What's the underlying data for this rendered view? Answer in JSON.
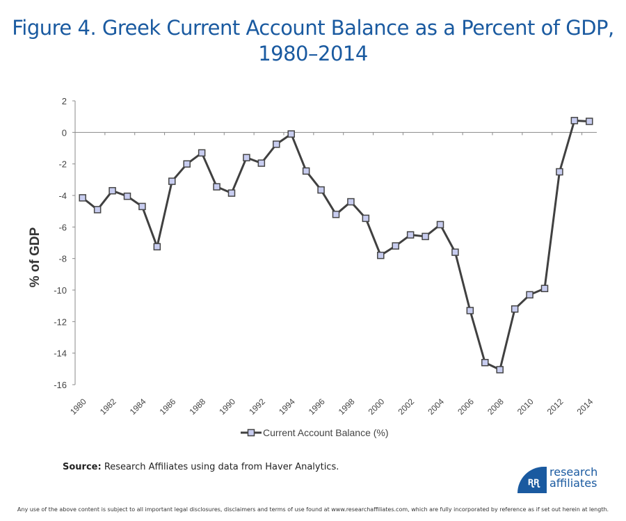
{
  "title_line1": "Figure 4. Greek Current Account Balance as a Percent of GDP,",
  "title_line2": "1980–2014",
  "source_label": "Source:",
  "source_text": " Research Affiliates using data from Haver Analytics.",
  "disclaimer": "Any use of the above content is subject to all important legal disclosures, disclaimers and terms of use found at www.researchaffiliates.com, which are fully incorporated by reference as if set out herein at length.",
  "logo": {
    "line1": "research",
    "line2": "affiliates",
    "mark": "ʀʀ"
  },
  "colors": {
    "title": "#1a5aa0",
    "line": "#404040",
    "marker_fill": "#c8cdf0",
    "axis": "#888888"
  },
  "chart_data": {
    "type": "line",
    "title": "",
    "xlabel": "",
    "ylabel": "% of GDP",
    "ylim": [
      -16,
      2
    ],
    "yticks": [
      2,
      0,
      -2,
      -4,
      -6,
      -8,
      -10,
      -12,
      -14,
      -16
    ],
    "xtick_labels": [
      "1980",
      "1982",
      "1984",
      "1986",
      "1988",
      "1990",
      "1992",
      "1994",
      "1996",
      "1998",
      "2000",
      "2002",
      "2004",
      "2006",
      "2008",
      "2010",
      "2012",
      "2014"
    ],
    "grid": false,
    "legend_position": "bottom",
    "x": [
      1980,
      1981,
      1982,
      1983,
      1984,
      1985,
      1986,
      1987,
      1988,
      1989,
      1990,
      1991,
      1992,
      1993,
      1994,
      1995,
      1996,
      1997,
      1998,
      1999,
      2000,
      2001,
      2002,
      2003,
      2004,
      2005,
      2006,
      2007,
      2008,
      2009,
      2010,
      2011,
      2012,
      2013,
      2014
    ],
    "series": [
      {
        "name": "Current Account Balance (%)",
        "values": [
          -4.15,
          -4.9,
          -3.7,
          -4.05,
          -4.7,
          -7.25,
          -3.1,
          -2.0,
          -1.3,
          -3.45,
          -3.85,
          -1.6,
          -1.95,
          -0.75,
          -0.1,
          -2.45,
          -3.65,
          -5.2,
          -4.4,
          -5.45,
          -7.8,
          -7.2,
          -6.5,
          -6.6,
          -5.85,
          -7.6,
          -11.3,
          -14.6,
          -15.05,
          -11.2,
          -10.3,
          -9.9,
          -2.5,
          0.75,
          0.7
        ]
      }
    ]
  }
}
